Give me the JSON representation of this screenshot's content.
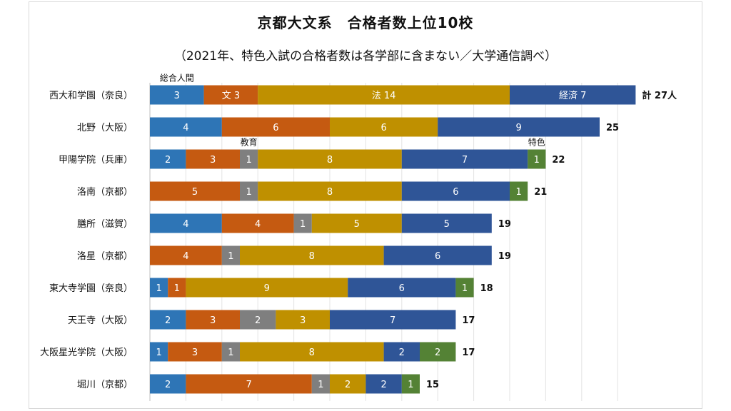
{
  "chart_data": {
    "type": "bar",
    "stacked": true,
    "orientation": "horizontal",
    "title": "京都大文系　合格者数上位10校",
    "subtitle": "（2021年、特色入試の合格者数は各学部に含まない／大学通信調べ）",
    "categories": [
      "西大和学園（奈良）",
      "北野（大阪）",
      "甲陽学院（兵庫）",
      "洛南（京都）",
      "膳所（滋賀）",
      "洛星（京都）",
      "東大寺学園（奈良）",
      "天王寺（大阪）",
      "大阪星光学院（大阪）",
      "堀川（京都）"
    ],
    "series": [
      {
        "name": "総合人間",
        "color": "#2e75b6",
        "values": [
          3,
          4,
          2,
          0,
          4,
          0,
          1,
          2,
          1,
          2
        ]
      },
      {
        "name": "文",
        "color": "#c55a11",
        "values": [
          3,
          6,
          3,
          5,
          4,
          4,
          1,
          3,
          3,
          7
        ]
      },
      {
        "name": "教育",
        "color": "#7f7f7f",
        "values": [
          0,
          0,
          1,
          1,
          1,
          1,
          0,
          2,
          1,
          1
        ]
      },
      {
        "name": "法",
        "color": "#bf9000",
        "values": [
          14,
          6,
          8,
          8,
          5,
          8,
          9,
          3,
          8,
          2
        ]
      },
      {
        "name": "経済",
        "color": "#2f5597",
        "values": [
          7,
          9,
          7,
          6,
          5,
          6,
          6,
          7,
          2,
          2
        ]
      },
      {
        "name": "特色",
        "color": "#548235",
        "values": [
          0,
          0,
          1,
          1,
          0,
          0,
          1,
          0,
          2,
          1
        ]
      }
    ],
    "totals": [
      "計 27人",
      "25",
      "22",
      "21",
      "19",
      "19",
      "18",
      "17",
      "17",
      "15"
    ],
    "segment_labels": [
      [
        "3",
        "文 3",
        "",
        "法 14",
        "経済 7",
        ""
      ],
      [
        "4",
        "6",
        "",
        "6",
        "9",
        ""
      ],
      [
        "2",
        "3",
        "1",
        "8",
        "7",
        "1"
      ],
      [
        "",
        "5",
        "1",
        "8",
        "6",
        "1"
      ],
      [
        "4",
        "4",
        "1",
        "5",
        "5",
        ""
      ],
      [
        "",
        "4",
        "1",
        "8",
        "6",
        ""
      ],
      [
        "1",
        "1",
        "",
        "9",
        "6",
        "1"
      ],
      [
        "2",
        "3",
        "2",
        "3",
        "7",
        ""
      ],
      [
        "1",
        "3",
        "1",
        "8",
        "2",
        "2"
      ],
      [
        "2",
        "7",
        "1",
        "2",
        "2",
        "1"
      ]
    ],
    "callouts": [
      {
        "text": "総合人間",
        "row": 0,
        "series": 0
      },
      {
        "text": "教育",
        "row": 2,
        "series": 2
      },
      {
        "text": "特色",
        "row": 2,
        "series": 5
      }
    ],
    "xlim": [
      0,
      27
    ],
    "grid": true,
    "legend": "none"
  }
}
